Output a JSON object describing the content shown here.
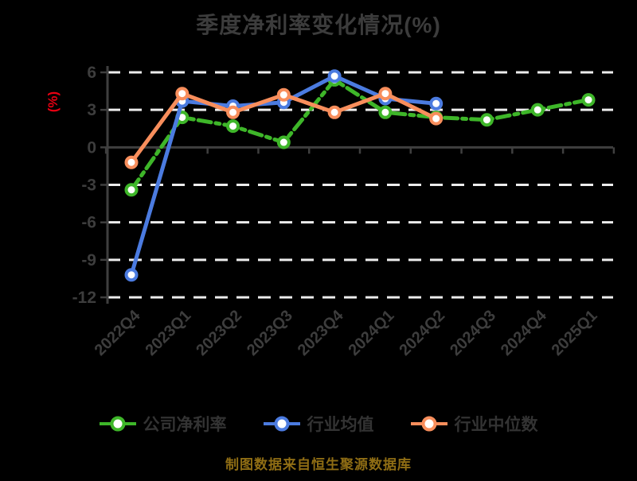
{
  "title": "季度净利率变化情况(%)",
  "footer": "制图数据来自恒生聚源数据库",
  "colors": {
    "background": "#000000",
    "title": "#3c3c3c",
    "tick_label": "#3d3d3d",
    "axis_line": "#3f3f3f",
    "gridline": "#ececec",
    "y_axis_title": "#e60012",
    "legend_text": "#333333",
    "footer_text": "#8f6d14",
    "marker_fill": "#ffffff"
  },
  "chart_data": {
    "type": "line",
    "title": "季度净利率变化情况(%)",
    "xlabel": "",
    "ylabel": "(%)",
    "ylim": [
      -12,
      6
    ],
    "yticks": [
      6,
      3,
      0,
      -3,
      -6,
      -9,
      -12
    ],
    "grid": "horizontal dashed white lines, solid dark zero line",
    "legend_position": "bottom",
    "categories": [
      "2022Q4",
      "2023Q1",
      "2023Q2",
      "2023Q3",
      "2023Q4",
      "2024Q1",
      "2024Q2",
      "2024Q3",
      "2024Q4",
      "2025Q1"
    ],
    "series": [
      {
        "id": "company-net-margin",
        "name": "公司净利率",
        "color": "#3eb629",
        "line_style": "dash-dot",
        "values": [
          -3.4,
          2.4,
          1.7,
          0.4,
          5.4,
          2.8,
          2.4,
          2.2,
          3.0,
          3.8
        ]
      },
      {
        "id": "industry-average",
        "name": "行业均值",
        "color": "#4b7be0",
        "line_style": "solid",
        "values": [
          -10.2,
          3.7,
          3.3,
          3.6,
          5.7,
          3.9,
          3.5,
          null,
          null,
          null
        ]
      },
      {
        "id": "industry-median",
        "name": "行业中位数",
        "color": "#f88e5c",
        "line_style": "solid",
        "values": [
          -1.2,
          4.3,
          2.8,
          4.2,
          2.8,
          4.3,
          2.3,
          null,
          null,
          null
        ]
      }
    ]
  }
}
